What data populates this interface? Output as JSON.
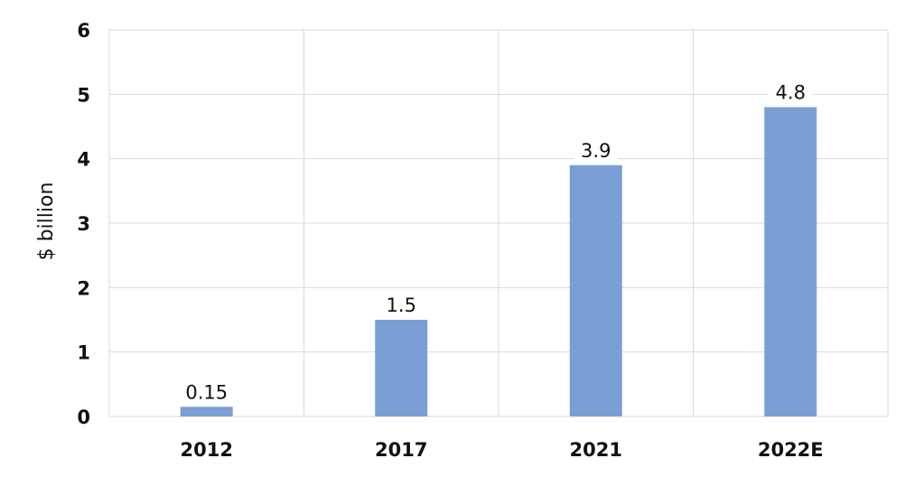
{
  "chart_data": {
    "type": "bar",
    "categories": [
      "2012",
      "2017",
      "2021",
      "2022E"
    ],
    "values": [
      0.15,
      1.5,
      3.9,
      4.8
    ],
    "data_labels": [
      "0.15",
      "1.5",
      "3.9",
      "4.8"
    ],
    "ylabel": "$ billion",
    "xlabel": "",
    "ylim": [
      0,
      6
    ],
    "yticks": [
      "0",
      "1",
      "2",
      "3",
      "4",
      "5",
      "6"
    ],
    "grid": true,
    "bar_color": "#7b9fd4",
    "grid_color": "#d9d9d9"
  }
}
